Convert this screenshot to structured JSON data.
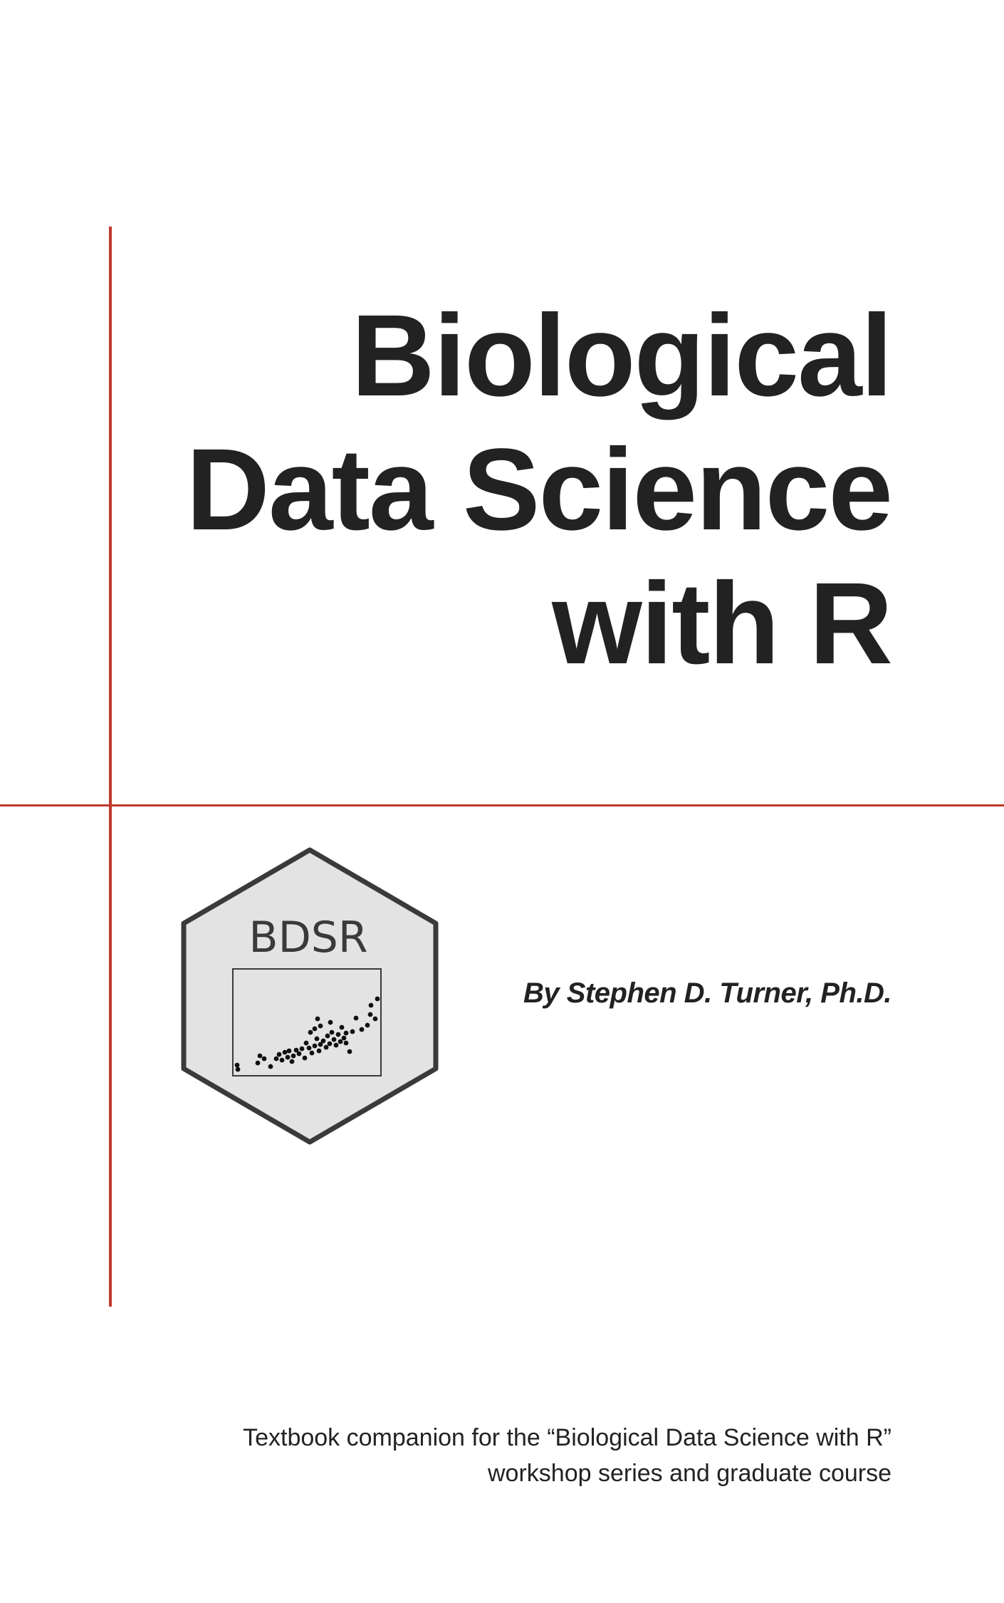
{
  "colors": {
    "accent": "#c0392b",
    "text": "#222222",
    "logo_fill": "#e3e3e3",
    "logo_stroke": "#3a3a3a"
  },
  "cover": {
    "title_lines": [
      "Biological",
      "Data Science",
      "with R"
    ],
    "author": "By Stephen D. Turner, Ph.D.",
    "description_lines": [
      "Textbook companion for the “Biological Data Science with R”",
      "workshop series and graduate course"
    ]
  },
  "logo": {
    "text": "BDSR",
    "shape": "hexagon",
    "icon": "scatter-plot-icon"
  }
}
